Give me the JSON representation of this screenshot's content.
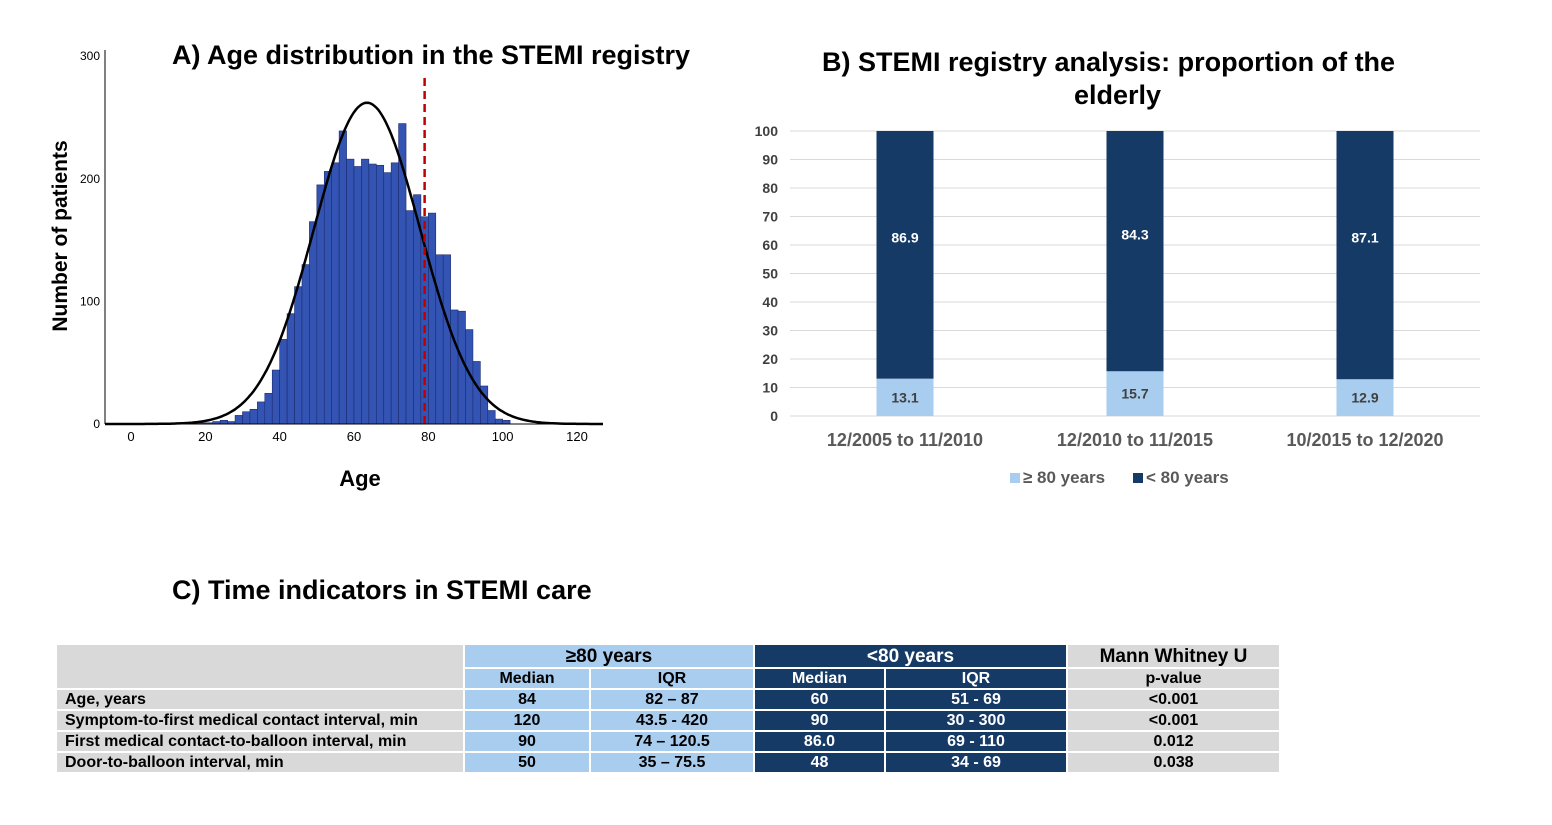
{
  "colors": {
    "hist_bar": "#3454b4",
    "hist_bar_edge": "#1c2a6e",
    "curve": "#000000",
    "cutoff_line": "#c00000",
    "light_blue": "#a9cdee",
    "dark_blue": "#163a66",
    "grid": "#d9d9d9",
    "table_gray": "#d9d9d9"
  },
  "chart_data": [
    {
      "id": "A",
      "type": "bar",
      "subtype": "histogram",
      "title": "A) Age distribution in the STEMI registry",
      "xlabel": "Age",
      "ylabel": "Number of patients",
      "xlim": [
        -7,
        127
      ],
      "ylim": [
        0,
        305
      ],
      "x_ticks": [
        0,
        20,
        40,
        60,
        80,
        100,
        120
      ],
      "y_ticks": [
        0,
        100,
        200,
        300
      ],
      "bin_width": 2,
      "bins": [
        {
          "x0": 18,
          "count": 1
        },
        {
          "x0": 20,
          "count": 1
        },
        {
          "x0": 22,
          "count": 2
        },
        {
          "x0": 24,
          "count": 3
        },
        {
          "x0": 26,
          "count": 2
        },
        {
          "x0": 28,
          "count": 7
        },
        {
          "x0": 30,
          "count": 10
        },
        {
          "x0": 32,
          "count": 12
        },
        {
          "x0": 34,
          "count": 18
        },
        {
          "x0": 36,
          "count": 25
        },
        {
          "x0": 38,
          "count": 44
        },
        {
          "x0": 40,
          "count": 69
        },
        {
          "x0": 42,
          "count": 90
        },
        {
          "x0": 44,
          "count": 112
        },
        {
          "x0": 46,
          "count": 130
        },
        {
          "x0": 48,
          "count": 165
        },
        {
          "x0": 50,
          "count": 195
        },
        {
          "x0": 52,
          "count": 206
        },
        {
          "x0": 54,
          "count": 213
        },
        {
          "x0": 56,
          "count": 239
        },
        {
          "x0": 58,
          "count": 216
        },
        {
          "x0": 60,
          "count": 210
        },
        {
          "x0": 62,
          "count": 216
        },
        {
          "x0": 64,
          "count": 212
        },
        {
          "x0": 66,
          "count": 211
        },
        {
          "x0": 68,
          "count": 205
        },
        {
          "x0": 70,
          "count": 213
        },
        {
          "x0": 72,
          "count": 245
        },
        {
          "x0": 74,
          "count": 174
        },
        {
          "x0": 76,
          "count": 187
        },
        {
          "x0": 78,
          "count": 169
        },
        {
          "x0": 80,
          "count": 172
        },
        {
          "x0": 82,
          "count": 138
        },
        {
          "x0": 84,
          "count": 138
        },
        {
          "x0": 86,
          "count": 93
        },
        {
          "x0": 88,
          "count": 92
        },
        {
          "x0": 90,
          "count": 77
        },
        {
          "x0": 92,
          "count": 51
        },
        {
          "x0": 94,
          "count": 31
        },
        {
          "x0": 96,
          "count": 11
        },
        {
          "x0": 98,
          "count": 4
        },
        {
          "x0": 100,
          "count": 3
        }
      ],
      "normal_curve": {
        "mean": 63.5,
        "sd": 14.3,
        "peak": 262
      },
      "reference_line_x": 79
    },
    {
      "id": "B",
      "type": "bar",
      "subtype": "stacked",
      "title_lines": [
        "B) STEMI registry analysis: proportion of the",
        "elderly"
      ],
      "categories": [
        "12/2005 to 11/2010",
        "12/2010 to 11/2015",
        "10/2015 to 12/2020"
      ],
      "series": [
        {
          "name": "≥ 80 years",
          "color": "#a9cdee",
          "values": [
            13.1,
            15.7,
            12.9
          ],
          "labels": [
            "13.1",
            "15.7",
            "12.9"
          ]
        },
        {
          "name": "< 80 years",
          "color": "#163a66",
          "values": [
            86.9,
            84.3,
            87.1
          ],
          "labels": [
            "86.9",
            "84.3",
            "87.1"
          ]
        }
      ],
      "ylim": [
        0,
        100
      ],
      "y_ticks": [
        0,
        10,
        20,
        30,
        40,
        50,
        60,
        70,
        80,
        90,
        100
      ],
      "grid": true,
      "legend_position": "bottom"
    },
    {
      "id": "C",
      "type": "table",
      "title": "C) Time indicators in STEMI care",
      "group_headers": [
        "≥80 years",
        "<80 years",
        "Mann Whitney U"
      ],
      "sub_headers": [
        "Median",
        "IQR",
        "Median",
        "IQR",
        "p-value"
      ],
      "rows": [
        {
          "label": "Age, years",
          "cells": [
            "84",
            "82 – 87",
            "60",
            "51 - 69",
            "<0.001"
          ]
        },
        {
          "label": "Symptom-to-first medical contact interval, min",
          "cells": [
            "120",
            "43.5 - 420",
            "90",
            "30 - 300",
            "<0.001"
          ]
        },
        {
          "label": "First medical contact-to-balloon interval, min",
          "cells": [
            "90",
            "74 – 120.5",
            "86.0",
            "69 - 110",
            "0.012"
          ]
        },
        {
          "label": "Door-to-balloon interval, min",
          "cells": [
            "50",
            "35 – 75.5",
            "48",
            "34 - 69",
            "0.038"
          ]
        }
      ]
    }
  ]
}
